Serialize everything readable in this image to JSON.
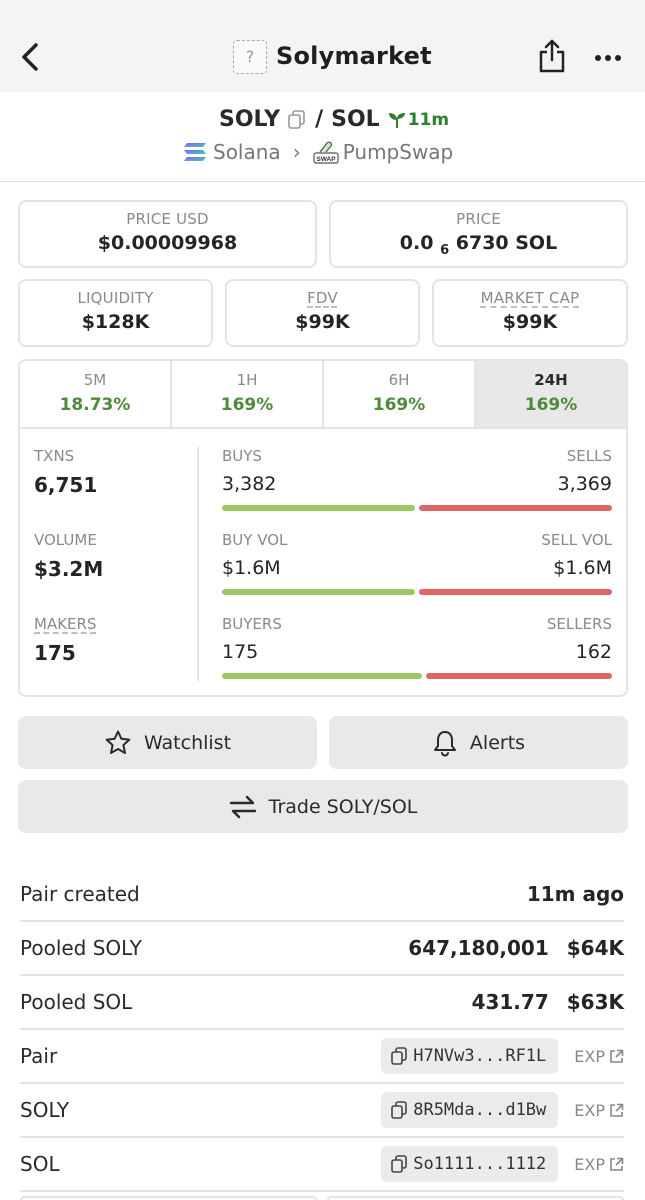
{
  "nav": {
    "title": "Solymarket",
    "logo_placeholder": "?",
    "back_icon": "chevron-left-icon",
    "share_icon": "share-icon",
    "more_icon": "more-horizontal-icon"
  },
  "pair": {
    "base": "SOLY",
    "quote": "SOL",
    "age": "11m",
    "chain": "Solana",
    "dex": "PumpSwap",
    "dex_icon_text": "SWAP"
  },
  "price_boxes": [
    {
      "label": "PRICE USD",
      "value": "$0.00009968"
    },
    {
      "label": "PRICE",
      "value_prefix": "0.0",
      "value_sub": "6",
      "value_suffix": "6730 SOL"
    }
  ],
  "metric_boxes": [
    {
      "label": "LIQUIDITY",
      "value": "$128K"
    },
    {
      "label": "FDV",
      "value": "$99K"
    },
    {
      "label": "MARKET CAP",
      "value": "$99K"
    }
  ],
  "periods": [
    {
      "label": "5M",
      "change": "18.73%"
    },
    {
      "label": "1H",
      "change": "169%"
    },
    {
      "label": "6H",
      "change": "169%"
    },
    {
      "label": "24H",
      "change": "169%",
      "active": true
    }
  ],
  "stats": {
    "txns_label": "TXNS",
    "txns": "6,751",
    "volume_label": "VOLUME",
    "volume": "$3.2M",
    "makers_label": "MAKERS",
    "makers": "175",
    "buys_label": "BUYS",
    "buys": "3,382",
    "sells_label": "SELLS",
    "sells": "3,369",
    "buy_vol_label": "BUY VOL",
    "buy_vol": "$1.6M",
    "sell_vol_label": "SELL VOL",
    "sell_vol": "$1.6M",
    "buyers_label": "BUYERS",
    "buyers": "175",
    "sellers_label": "SELLERS",
    "sellers": "162",
    "buys_fraction": 0.501,
    "buy_vol_fraction": 0.5,
    "buyers_fraction": 0.519
  },
  "actions": {
    "watchlist": "Watchlist",
    "alerts": "Alerts",
    "trade": "Trade SOLY/SOL"
  },
  "info": {
    "pair_created_label": "Pair created",
    "pair_created": "11m ago",
    "pooled_soly_label": "Pooled SOLY",
    "pooled_soly_amount": "647,180,001",
    "pooled_soly_usd": "$64K",
    "pooled_sol_label": "Pooled SOL",
    "pooled_sol_amount": "431.77",
    "pooled_sol_usd": "$63K",
    "addresses": [
      {
        "label": "Pair",
        "address": "H7NVw3...RF1L",
        "exp": "EXP"
      },
      {
        "label": "SOLY",
        "address": "8R5Mda...d1Bw",
        "exp": "EXP"
      },
      {
        "label": "SOL",
        "address": "So1111...1112",
        "exp": "EXP"
      }
    ]
  },
  "colors": {
    "positive": "#4e8a3a",
    "buy_bar": "#9cca62",
    "sell_bar": "#e06565"
  }
}
